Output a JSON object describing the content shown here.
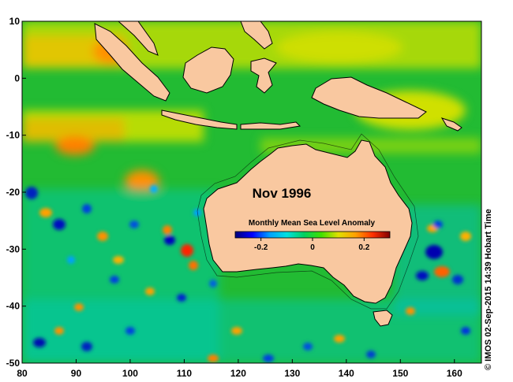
{
  "map": {
    "title": "Nov 1996",
    "lon_range": [
      80,
      165
    ],
    "lat_range": [
      -50,
      10
    ],
    "x_ticks": [
      "80",
      "90",
      "100",
      "110",
      "120",
      "130",
      "140",
      "150",
      "160"
    ],
    "y_ticks": [
      "10",
      "0",
      "-10",
      "-20",
      "-30",
      "-40",
      "-50"
    ],
    "land_color": "#f9c8a0",
    "ocean_base_color": "#22bb33"
  },
  "colorbar": {
    "title": "Monthly Mean Sea Level Anomaly",
    "tick_labels": [
      "-0.2",
      "0",
      "0.2"
    ],
    "range": [
      -0.3,
      0.3
    ],
    "colors": [
      "#00007a",
      "#0000ff",
      "#00a0ff",
      "#00e0e0",
      "#00d060",
      "#40e000",
      "#e0e000",
      "#ffa000",
      "#ff3000",
      "#800000"
    ]
  },
  "credit": "© IMOS 02-Sep-2015 14:39 Hobart Time"
}
